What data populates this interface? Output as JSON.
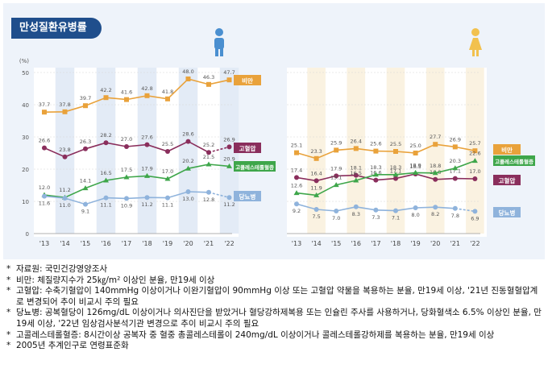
{
  "title": "만성질환유병률",
  "y_unit": "(%)",
  "colors": {
    "비만": "#e9a23b",
    "고혈압": "#8a2e5c",
    "고콜레스테롤혈증": "#3ea64a",
    "당뇨병": "#8fb3dc"
  },
  "icons": {
    "male": "male-person-icon",
    "female": "female-person-icon"
  },
  "chart_data": [
    {
      "type": "line",
      "panel": "male",
      "categories": [
        "'13",
        "'14",
        "'15",
        "'16",
        "'17",
        "'18",
        "'19",
        "'20",
        "'21",
        "'22"
      ],
      "ylim": [
        0,
        50
      ],
      "yticks": [
        "0",
        "10",
        "20",
        "30",
        "40",
        "50"
      ],
      "series": [
        {
          "name": "비만",
          "values": [
            37.7,
            37.8,
            39.7,
            42.2,
            41.6,
            42.8,
            41.8,
            48.0,
            46.3,
            47.7
          ]
        },
        {
          "name": "고혈압",
          "values": [
            26.6,
            23.8,
            26.3,
            28.2,
            27.0,
            27.6,
            25.5,
            28.6,
            25.2,
            26.9
          ]
        },
        {
          "name": "고콜레스테롤혈증",
          "values": [
            12.0,
            11.2,
            14.1,
            16.5,
            17.5,
            17.9,
            17.0,
            20.2,
            21.5,
            20.9
          ]
        },
        {
          "name": "당뇨병",
          "values": [
            11.6,
            11.0,
            9.1,
            11.1,
            10.9,
            11.2,
            11.1,
            13.0,
            12.8,
            11.2
          ]
        }
      ]
    },
    {
      "type": "line",
      "panel": "female",
      "categories": [
        "'13",
        "'14",
        "'15",
        "'16",
        "'17",
        "'18",
        "'19",
        "'20",
        "'21",
        "'22"
      ],
      "ylim": [
        0,
        50
      ],
      "series": [
        {
          "name": "비만",
          "values": [
            25.1,
            23.3,
            25.9,
            26.4,
            25.6,
            25.5,
            25.0,
            27.7,
            26.9,
            25.7
          ]
        },
        {
          "name": "고혈압",
          "values": [
            17.4,
            16.4,
            17.9,
            18.1,
            16.6,
            17.1,
            18.5,
            16.8,
            17.1,
            17.0
          ]
        },
        {
          "name": "고콜레스테롤혈증",
          "values": [
            12.6,
            11.9,
            15.1,
            16.5,
            18.3,
            18.3,
            18.9,
            18.8,
            20.3,
            22.6
          ]
        },
        {
          "name": "당뇨병",
          "values": [
            9.2,
            7.5,
            7.0,
            8.3,
            7.3,
            7.1,
            8.0,
            8.2,
            7.8,
            6.9
          ]
        }
      ]
    }
  ],
  "notes": [
    {
      "bullet": "*",
      "text": "자료원: 국민건강영양조사"
    },
    {
      "bullet": "*",
      "text": "비만: 체질량지수가 25㎏/m² 이상인 분율, 만19세 이상"
    },
    {
      "bullet": "*",
      "text": "고혈압: 수축기혈압이 140mmHg 이상이거나 이완기혈압이 90mmHg 이상 또는 고혈압 약물을 복용하는 분율, 만19세 이상, '21년 진동혈혈압계로 변경되어 추이 비교시 주의 필요"
    },
    {
      "bullet": "*",
      "text": "당뇨병: 공복혈당이 126mg/dL 이상이거나 의사진단을 받았거나 혈당강하제복용 또는 인슐린 주사를 사용하거나, 당화혈색소 6.5% 이상인 분율, 만19세 이상, '22년 임상검사분석기관 변경으로 추이 비교시 주의 필요"
    },
    {
      "bullet": "*",
      "text": "고콜레스테롤혈증: 8시간이상 공복자 중 혈중 총콜레스테롤이 240mg/dL 이상이거나 콜레스테롤강하제를 복용하는 분율, 만19세 이상"
    },
    {
      "bullet": "*",
      "text": "2005년 추계인구로 연령표준화"
    }
  ]
}
